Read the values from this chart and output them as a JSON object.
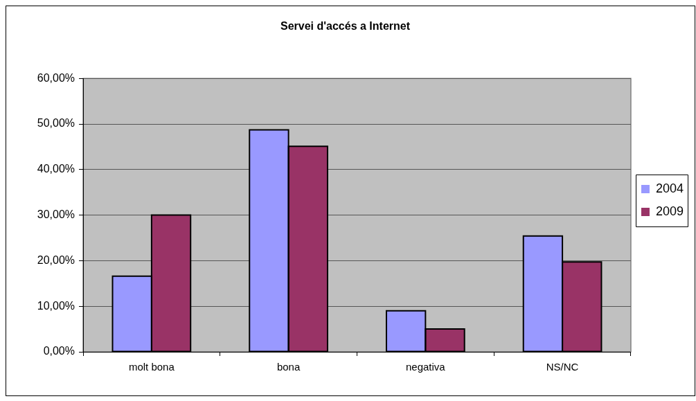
{
  "chart_data": {
    "type": "bar",
    "title": "Servei d'accés a Internet",
    "categories": [
      "molt bona",
      "bona",
      "negativa",
      "NS/NC"
    ],
    "series": [
      {
        "name": "2004",
        "color": "#9999ff",
        "values": [
          16.6,
          48.7,
          9.0,
          25.4
        ]
      },
      {
        "name": "2009",
        "color": "#993366",
        "values": [
          30.0,
          45.1,
          5.0,
          19.7
        ]
      }
    ],
    "ylim": [
      0,
      60
    ],
    "yticks": [
      {
        "value": 0,
        "label": "0,00%"
      },
      {
        "value": 10,
        "label": "10,00%"
      },
      {
        "value": 20,
        "label": "20,00%"
      },
      {
        "value": 30,
        "label": "30,00%"
      },
      {
        "value": 40,
        "label": "40,00%"
      },
      {
        "value": 50,
        "label": "50,00%"
      },
      {
        "value": 60,
        "label": "60,00%"
      }
    ],
    "grid": "y",
    "legend": "right"
  }
}
